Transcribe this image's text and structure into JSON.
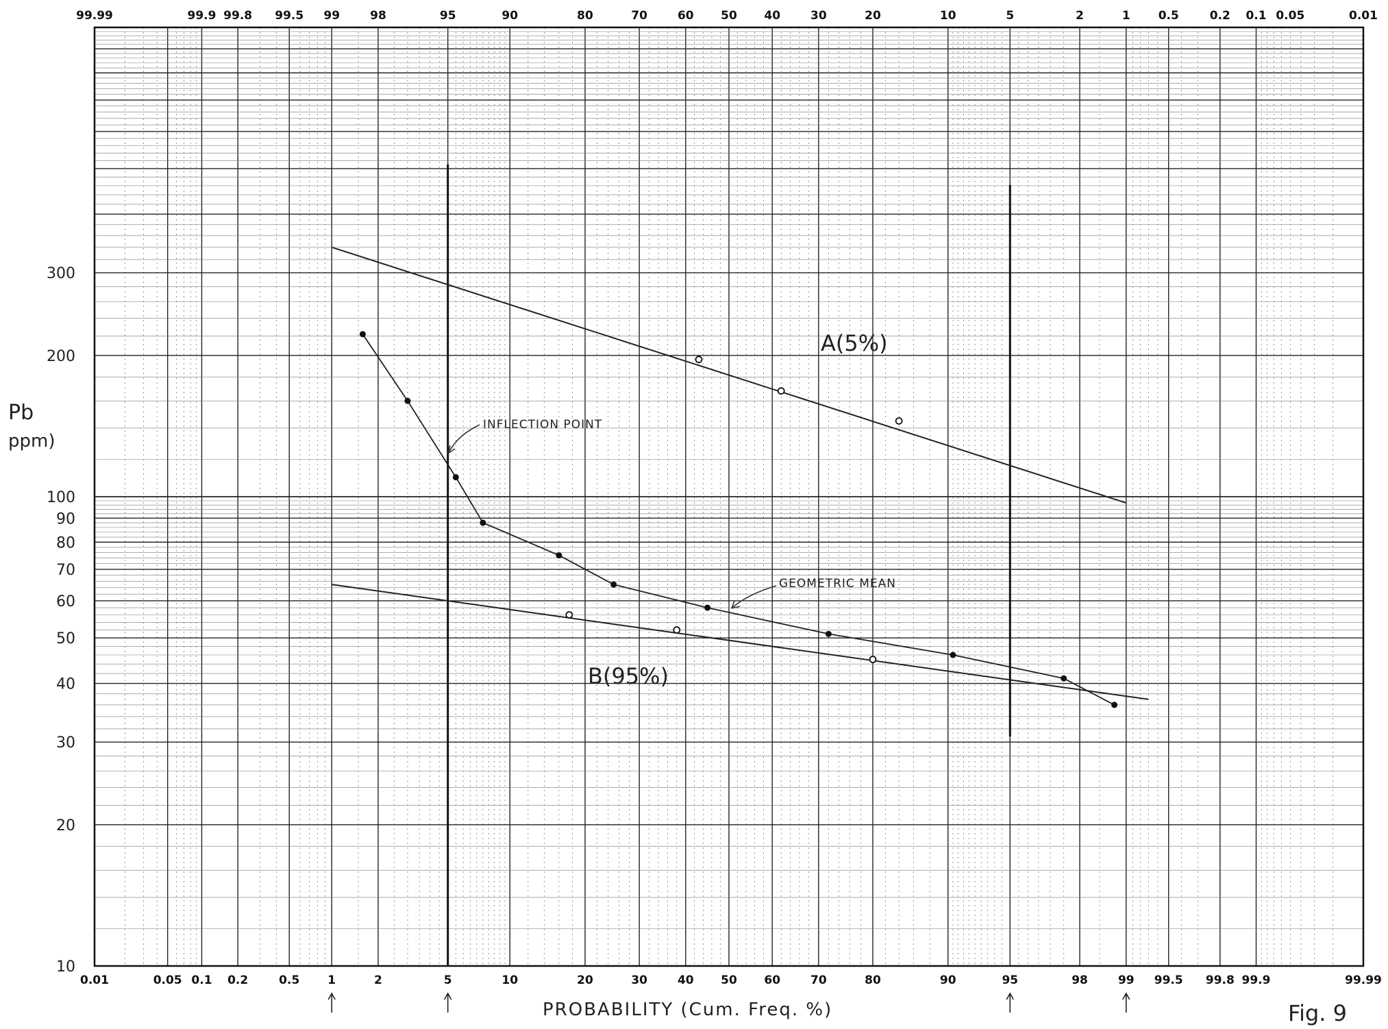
{
  "chart_data": {
    "type": "scatter",
    "title": "",
    "xlabel": "PROBABILITY (Cum. Freq. %)",
    "ylabel": "Pb ppm)",
    "x_scale": "probability",
    "y_scale": "log",
    "xlim": [
      0.01,
      99.99
    ],
    "ylim": [
      10,
      1000
    ],
    "grid": true,
    "x_ticks_bottom": [
      "0.01",
      "0.05",
      "0.1",
      "0.2",
      "0.5",
      "1",
      "2",
      "5",
      "10",
      "20",
      "30",
      "40",
      "50",
      "60",
      "70",
      "80",
      "90",
      "95",
      "98",
      "99",
      "99.5",
      "99.8",
      "99.9",
      "99.99"
    ],
    "x_ticks_top": [
      "99.99",
      "99.9",
      "99.8",
      "99.5",
      "99",
      "98",
      "95",
      "90",
      "80",
      "70",
      "60",
      "50",
      "40",
      "30",
      "20",
      "10",
      "5",
      "2",
      "1",
      "0.5",
      "0.2",
      "0.1",
      "0.05",
      "0.01"
    ],
    "y_ticks": [
      "10",
      "20",
      "30",
      "40",
      "50",
      "60",
      "70",
      "80",
      "90",
      "100",
      "200",
      "300"
    ],
    "arrow_markers": [
      "1",
      "5",
      "95",
      "99"
    ],
    "series": [
      {
        "name": "",
        "marker": "filled",
        "x": [
          1.6,
          3.0,
          5.5,
          7.5,
          16,
          25,
          45,
          72,
          90.5,
          97.5,
          98.8
        ],
        "y": [
          222,
          160,
          110,
          88,
          75,
          65,
          58,
          51,
          46,
          41,
          36
        ]
      },
      {
        "name": "A(5%)",
        "marker": "open",
        "x": [
          43,
          62,
          84
        ],
        "y": [
          196,
          168,
          145
        ]
      },
      {
        "name": "B(95%)",
        "marker": "open",
        "x": [
          17.5,
          38,
          80
        ],
        "y": [
          56,
          52,
          45
        ]
      }
    ],
    "fit_lines": [
      {
        "name": "A(5%)",
        "x": [
          1,
          99
        ],
        "y": [
          340,
          97
        ]
      },
      {
        "name": "B(95%)",
        "x": [
          1,
          99.3
        ],
        "y": [
          65,
          37
        ]
      }
    ],
    "annotations": [
      "INFLECTION POINT",
      "GEOMETRIC MEAN",
      "A(5%)",
      "B(95%)"
    ],
    "figure_label": "Fig. 9"
  }
}
